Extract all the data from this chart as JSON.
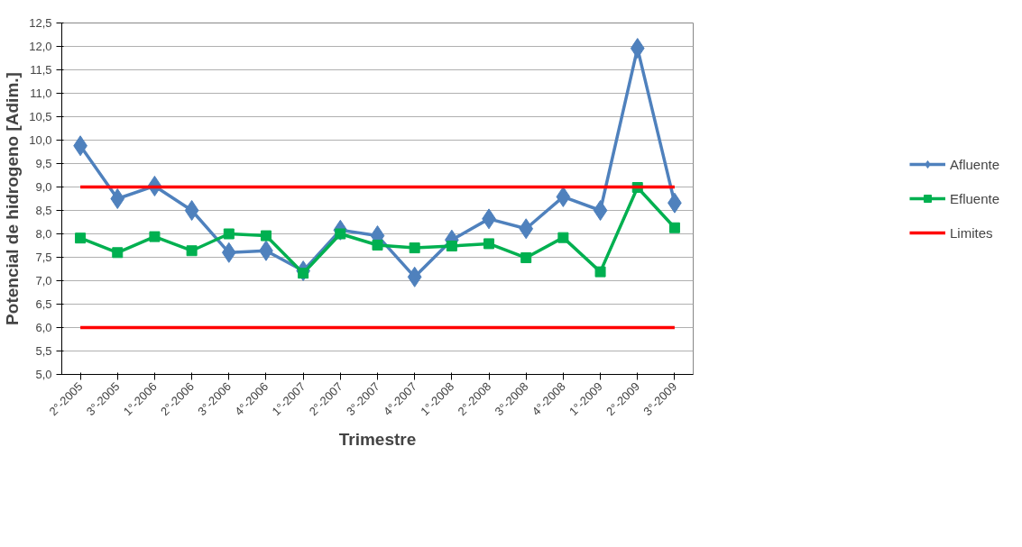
{
  "chart_data": {
    "type": "line",
    "xlabel": "Trimestre",
    "ylabel": "Potencial de hidrogeno [Adim.]",
    "categories": [
      "2°-2005",
      "3°-2005",
      "1°-2006",
      "2°-2006",
      "3°-2006",
      "4°-2006",
      "1°-2007",
      "2°-2007",
      "3°-2007",
      "4°-2007",
      "1°-2008",
      "2°-2008",
      "3°-2008",
      "4°-2008",
      "1°-2009",
      "2°-2009",
      "3°-2009"
    ],
    "series": [
      {
        "name": "Afluente",
        "color": "#4f81bd",
        "marker": "diamond",
        "values": [
          9.88,
          8.75,
          9.02,
          8.5,
          7.6,
          7.64,
          7.21,
          8.08,
          7.96,
          7.08,
          7.87,
          8.32,
          8.11,
          8.79,
          8.5,
          11.96,
          8.66
        ]
      },
      {
        "name": "Efluente",
        "color": "#00b050",
        "marker": "square",
        "values": [
          7.91,
          7.6,
          7.94,
          7.64,
          8.0,
          7.96,
          7.16,
          8.0,
          7.76,
          7.7,
          7.74,
          7.79,
          7.49,
          7.92,
          7.19,
          8.99,
          8.13
        ]
      },
      {
        "name": "Limites",
        "color": "#ff0000",
        "marker": "none",
        "values": [
          9,
          9,
          9,
          9,
          9,
          9,
          9,
          9,
          9,
          9,
          9,
          9,
          9,
          9,
          9,
          9,
          9
        ]
      },
      {
        "color": "#ff0000",
        "marker": "none",
        "values": [
          6,
          6,
          6,
          6,
          6,
          6,
          6,
          6,
          6,
          6,
          6,
          6,
          6,
          6,
          6,
          6,
          6
        ]
      }
    ],
    "ylim": [
      5.0,
      12.5
    ],
    "yticks": [
      {
        "value": 5.0,
        "label": "5,0"
      },
      {
        "value": 5.5,
        "label": "5,5"
      },
      {
        "value": 6.0,
        "label": "6,0"
      },
      {
        "value": 6.5,
        "label": "6,5"
      },
      {
        "value": 7.0,
        "label": "7,0"
      },
      {
        "value": 7.5,
        "label": "7,5"
      },
      {
        "value": 8.0,
        "label": "8,0"
      },
      {
        "value": 8.5,
        "label": "8,5"
      },
      {
        "value": 9.0,
        "label": "9,0"
      },
      {
        "value": 9.5,
        "label": "9,5"
      },
      {
        "value": 10.0,
        "label": "10,0"
      },
      {
        "value": 10.5,
        "label": "10,5"
      },
      {
        "value": 11.0,
        "label": "11,0"
      },
      {
        "value": 11.5,
        "label": "11,5"
      },
      {
        "value": 12.0,
        "label": "12,0"
      },
      {
        "value": 12.5,
        "label": "12,5"
      }
    ],
    "grid": "y",
    "legend": "right"
  }
}
